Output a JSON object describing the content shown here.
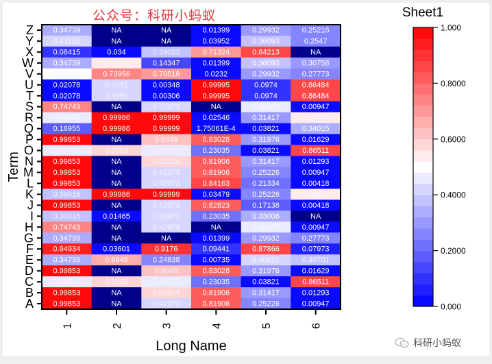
{
  "title": "公众号：科研小蚂蚁",
  "watermark": "科研小蚂蚁",
  "chart_data": {
    "type": "heatmap",
    "title": "公众号：科研小蚂蚁",
    "xlabel": "Long Name",
    "ylabel": "Term",
    "x_categories": [
      "1",
      "2",
      "3",
      "4",
      "5",
      "6"
    ],
    "y_categories": [
      "Z",
      "Y",
      "X",
      "W",
      "V",
      "U",
      "T",
      "S",
      "R",
      "Q",
      "P",
      "O",
      "N",
      "M",
      "L",
      "K",
      "J",
      "I",
      "H",
      "G",
      "F",
      "E",
      "D",
      "C",
      "B",
      "A"
    ],
    "values": [
      [
        "0.34739",
        "NA",
        "NA",
        "0.01399",
        "0.29932",
        "0.25216"
      ],
      [
        "0.41138",
        "NA",
        "NA",
        "0.03952",
        "0.36093",
        "0.2547"
      ],
      [
        "0.08415",
        "0.034",
        "0.39023",
        "0.71324",
        "0.84213",
        "NA"
      ],
      [
        "0.34739",
        "0.55585",
        "0.14347",
        "0.01399",
        "0.36093",
        "0.30758"
      ],
      [
        "0.50683",
        "0.73956",
        "0.70518",
        "0.0232",
        "0.29932",
        "0.27773"
      ],
      [
        "0.02078",
        "0.4051",
        "0.00348",
        "0.99995",
        "0.0974",
        "0.86484"
      ],
      [
        "0.02078",
        "0.4051",
        "0.00306",
        "0.99995",
        "0.0974",
        "0.86484"
      ],
      [
        "0.74743",
        "NA",
        "0.42973",
        "NA",
        "0.46485",
        "0.00947"
      ],
      [
        "0.46862",
        "0.99986",
        "0.99999",
        "0.02546",
        "0.31417",
        "0.54449"
      ],
      [
        "0.16955",
        "0.99986",
        "0.99999",
        "1.75061E-4",
        "0.03821",
        "0.34015"
      ],
      [
        "0.99853",
        "NA",
        "0.6049",
        "0.83028",
        "0.31976",
        "0.01629"
      ],
      [
        "0.46862",
        "0.5883",
        "0.46293",
        "0.23035",
        "0.03821",
        "0.86511"
      ],
      [
        "0.99853",
        "NA",
        "0.56314",
        "0.81906",
        "0.31417",
        "0.01293"
      ],
      [
        "0.99853",
        "NA",
        "0.42973",
        "0.81906",
        "0.25226",
        "0.00947"
      ],
      [
        "0.99853",
        "NA",
        "0.42973",
        "0.84163",
        "0.21334",
        "0.00418"
      ],
      [
        "0.39016",
        "0.99986",
        "0.99999",
        "0.03479",
        "0.25226",
        "0.54449"
      ],
      [
        "0.99853",
        "NA",
        "0.42973",
        "0.82823",
        "0.17138",
        "0.00418"
      ],
      [
        "0.39016",
        "0.01465",
        "0.42973",
        "0.23035",
        "0.33006",
        "NA"
      ],
      [
        "0.74743",
        "NA",
        "0.42973",
        "NA",
        "0.46485",
        "0.00947"
      ],
      [
        "0.34739",
        "NA",
        "NA",
        "0.01399",
        "0.29932",
        "0.27773"
      ],
      [
        "0.94934",
        "0.03601",
        "0.9176",
        "0.09441",
        "0.87866",
        "0.07973"
      ],
      [
        "0.34739",
        "0.6645",
        "0.24838",
        "0.00735",
        "0.40622",
        "0.39701"
      ],
      [
        "0.99853",
        "NA",
        "0.6049",
        "0.83028",
        "0.31976",
        "0.01629"
      ],
      [
        "0.46862",
        "0.5883",
        "0.46293",
        "0.23035",
        "0.03821",
        "0.86511"
      ],
      [
        "0.99853",
        "NA",
        "0.56314",
        "0.81906",
        "0.31417",
        "0.01293"
      ],
      [
        "0.99853",
        "NA",
        "0.42973",
        "0.81906",
        "0.25226",
        "0.00947"
      ]
    ],
    "colorbar": {
      "title": "Sheet1",
      "range": [
        0,
        1
      ],
      "levels": 25,
      "ticks": [
        "0.000",
        "0.2000",
        "0.4000",
        "0.6000",
        "0.8000",
        "1.000"
      ],
      "tick_values": [
        0,
        0.2,
        0.4,
        0.6,
        0.8,
        1.0
      ],
      "low_color": "#0000ff",
      "mid_color": "#ffffff",
      "high_color": "#ff0000",
      "na_color": "#00008b"
    }
  }
}
